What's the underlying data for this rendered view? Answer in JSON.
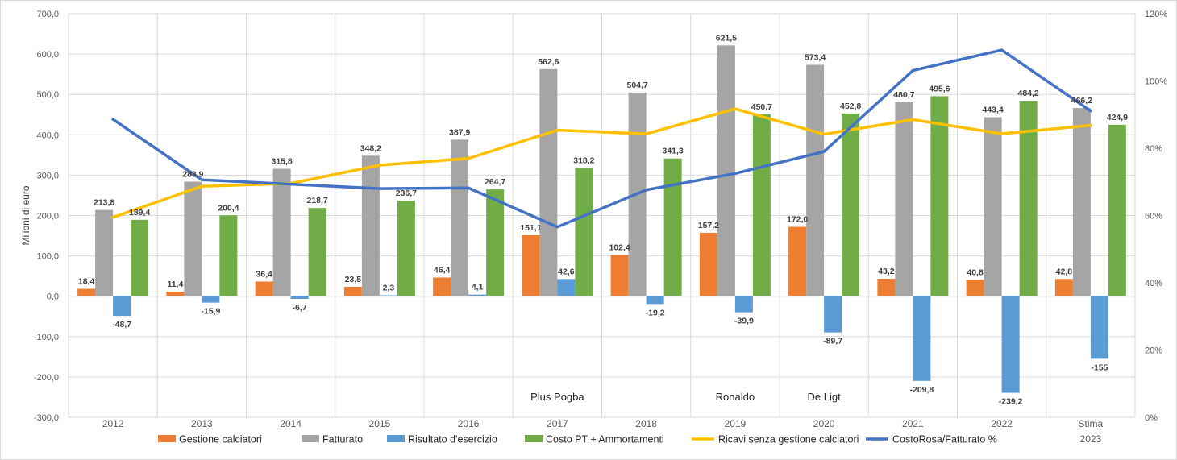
{
  "chart_data": {
    "type": "bar",
    "title": "",
    "ylabel": "Milioni di euro",
    "ylim": [
      -300,
      700
    ],
    "yticks": [
      "-300,0",
      "-200,0",
      "-100,0",
      "0,0",
      "100,0",
      "200,0",
      "300,0",
      "400,0",
      "500,0",
      "600,0",
      "700,0"
    ],
    "y2lim": [
      0,
      120
    ],
    "y2ticks": [
      "0%",
      "20%",
      "40%",
      "60%",
      "80%",
      "100%",
      "120%"
    ],
    "grid": true,
    "legend_position": "bottom",
    "categories": [
      {
        "line1": "2012",
        "line2": ""
      },
      {
        "line1": "2013",
        "line2": ""
      },
      {
        "line1": "2014",
        "line2": ""
      },
      {
        "line1": "2015",
        "line2": ""
      },
      {
        "line1": "2016",
        "line2": ""
      },
      {
        "line1": "2017",
        "line2": ""
      },
      {
        "line1": "2018",
        "line2": ""
      },
      {
        "line1": "2019",
        "line2": ""
      },
      {
        "line1": "2020",
        "line2": ""
      },
      {
        "line1": "2021",
        "line2": ""
      },
      {
        "line1": "2022",
        "line2": ""
      },
      {
        "line1": "Stima",
        "line2": "2023"
      }
    ],
    "series": [
      {
        "name": "Gestione calciatori",
        "kind": "bar",
        "color": "#ED7D31",
        "values": [
          18.4,
          11.4,
          36.4,
          23.5,
          46.4,
          151.1,
          102.4,
          157.2,
          172.0,
          43.2,
          40.8,
          42.8
        ],
        "labels": [
          "18,4",
          "11,4",
          "36,4",
          "23,5",
          "46,4",
          "151,1",
          "102,4",
          "157,2",
          "172,0",
          "43,2",
          "40,8",
          "42,8"
        ]
      },
      {
        "name": "Fatturato",
        "kind": "bar",
        "color": "#A5A5A5",
        "values": [
          213.8,
          283.9,
          315.8,
          348.2,
          387.9,
          562.6,
          504.7,
          621.5,
          573.4,
          480.7,
          443.4,
          466.2
        ],
        "labels": [
          "213,8",
          "283,9",
          "315,8",
          "348,2",
          "387,9",
          "562,6",
          "504,7",
          "621,5",
          "573,4",
          "480,7",
          "443,4",
          "466,2"
        ]
      },
      {
        "name": "Risultato d'esercizio",
        "kind": "bar",
        "color": "#5B9BD5",
        "values": [
          -48.7,
          -15.9,
          -6.7,
          2.3,
          4.1,
          42.6,
          -19.2,
          -39.9,
          -89.7,
          -209.8,
          -239.2,
          -155
        ],
        "labels": [
          "-48,7",
          "-15,9",
          "-6,7",
          "2,3",
          "4,1",
          "42,6",
          "-19,2",
          "-39,9",
          "-89,7",
          "-209,8",
          "-239,2",
          "-155"
        ]
      },
      {
        "name": "Costo PT + Ammortamenti",
        "kind": "bar",
        "color": "#70AD47",
        "values": [
          189.4,
          200.4,
          218.7,
          236.7,
          264.7,
          318.2,
          341.3,
          450.7,
          452.8,
          495.6,
          484.2,
          424.9
        ],
        "labels": [
          "189,4",
          "200,4",
          "218,7",
          "236,7",
          "264,7",
          "318,2",
          "341,3",
          "450,7",
          "452,8",
          "495,6",
          "484,2",
          "424,9"
        ]
      },
      {
        "name": "Ricavi senza gestione calciatori",
        "kind": "line",
        "axis": "left",
        "color": "#FFC000",
        "values": [
          195.4,
          272.5,
          279.4,
          324.7,
          341.5,
          411.5,
          402.3,
          464.3,
          401.4,
          437.5,
          402.6,
          423.4
        ]
      },
      {
        "name": "CostoRosa/Fatturato %",
        "kind": "line",
        "axis": "right",
        "color": "#4472C4",
        "values": [
          88.6,
          70.6,
          69.3,
          68.0,
          68.2,
          56.6,
          67.6,
          72.5,
          79.0,
          103.1,
          109.2,
          91.1
        ]
      }
    ],
    "annotations": [
      {
        "category_index": 5,
        "text": "Plus Pogba"
      },
      {
        "category_index": 7,
        "text": "Ronaldo"
      },
      {
        "category_index": 8,
        "text": "De Ligt"
      }
    ]
  }
}
